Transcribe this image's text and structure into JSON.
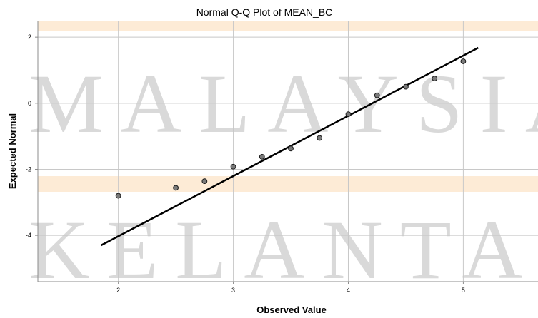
{
  "chart_data": {
    "type": "scatter",
    "title": "Normal Q-Q Plot of MEAN_BC",
    "xlabel": "Observed Value",
    "ylabel": "Expected Normal",
    "xlim": [
      1.3,
      5.65
    ],
    "ylim": [
      -5.4,
      2.5
    ],
    "x_ticks": [
      2,
      3,
      4,
      5
    ],
    "y_ticks": [
      2,
      0,
      -2,
      -4
    ],
    "grid": true,
    "points": [
      {
        "x": 2.0,
        "y": -2.8
      },
      {
        "x": 2.5,
        "y": -2.56
      },
      {
        "x": 2.75,
        "y": -2.36
      },
      {
        "x": 3.0,
        "y": -1.92
      },
      {
        "x": 3.25,
        "y": -1.62
      },
      {
        "x": 3.5,
        "y": -1.37
      },
      {
        "x": 3.75,
        "y": -1.05
      },
      {
        "x": 4.0,
        "y": -0.33
      },
      {
        "x": 4.25,
        "y": 0.24
      },
      {
        "x": 4.5,
        "y": 0.5
      },
      {
        "x": 4.75,
        "y": 0.75
      },
      {
        "x": 5.0,
        "y": 1.27
      }
    ],
    "reference_line": {
      "x1": 1.85,
      "y1": -4.3,
      "x2": 5.13,
      "y2": 1.68
    },
    "point_color": "#7a7a7a",
    "line_color": "#000000"
  },
  "watermark": {
    "line1": "MALAYSIA",
    "line2": "KELANTAN",
    "band_color": "#fdebd6"
  }
}
